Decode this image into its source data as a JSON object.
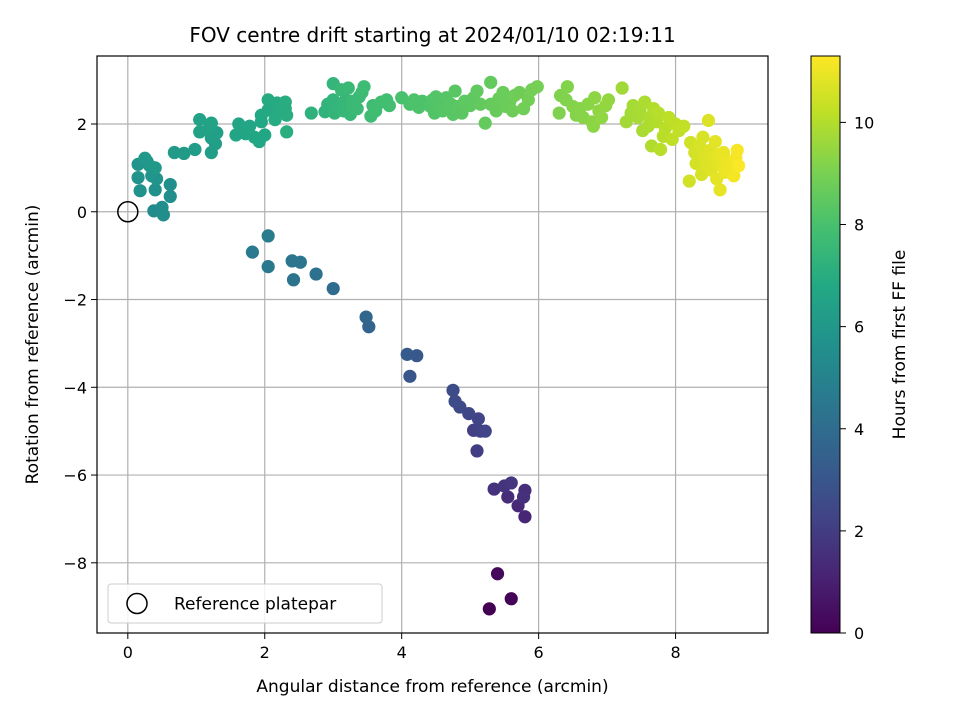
{
  "chart_data": {
    "type": "scatter",
    "title": "FOV centre drift starting at 2024/01/10 02:19:11",
    "xlabel": "Angular distance from reference (arcmin)",
    "ylabel": "Rotation from reference (arcmin)",
    "xlim": [
      -0.45,
      9.35
    ],
    "ylim": [
      -9.6,
      3.55
    ],
    "xticks": [
      0,
      2,
      4,
      6,
      8
    ],
    "yticks": [
      -8,
      -6,
      -4,
      -2,
      0,
      2
    ],
    "xtick_labels": [
      "0",
      "2",
      "4",
      "6",
      "8"
    ],
    "ytick_labels": [
      "−8",
      "−6",
      "−4",
      "−2",
      "0",
      "2"
    ],
    "grid": true,
    "colormap": "viridis",
    "colorbar": {
      "label": "Hours from first FF file",
      "min": 0,
      "max": 11.3,
      "ticks": [
        0,
        2,
        4,
        6,
        8,
        10
      ],
      "tick_labels": [
        "0",
        "2",
        "4",
        "6",
        "8",
        "10"
      ]
    },
    "reference": {
      "x": 0,
      "y": 0
    },
    "legend": {
      "position": "lower-left",
      "label": "Reference platepar"
    },
    "series": [
      {
        "values_format": "[x, y, hours]",
        "points": [
          [
            5.28,
            -9.05,
            0.0
          ],
          [
            5.6,
            -8.82,
            0.1
          ],
          [
            5.4,
            -8.25,
            0.25
          ],
          [
            5.8,
            -6.95,
            1.2
          ],
          [
            5.7,
            -6.7,
            1.3
          ],
          [
            5.55,
            -6.5,
            1.4
          ],
          [
            5.8,
            -6.35,
            1.5
          ],
          [
            5.78,
            -6.5,
            1.55
          ],
          [
            5.35,
            -6.32,
            1.6
          ],
          [
            5.5,
            -6.25,
            1.7
          ],
          [
            5.6,
            -6.18,
            1.8
          ],
          [
            5.1,
            -5.45,
            2.0
          ],
          [
            5.05,
            -4.98,
            2.1
          ],
          [
            5.15,
            -5.0,
            2.2
          ],
          [
            5.22,
            -5.0,
            2.25
          ],
          [
            5.12,
            -4.72,
            2.3
          ],
          [
            4.98,
            -4.6,
            2.4
          ],
          [
            4.85,
            -4.45,
            2.5
          ],
          [
            4.78,
            -4.32,
            2.55
          ],
          [
            4.75,
            -4.07,
            2.6
          ],
          [
            4.12,
            -3.75,
            3.0
          ],
          [
            4.22,
            -3.28,
            3.1
          ],
          [
            4.08,
            -3.25,
            3.2
          ],
          [
            3.52,
            -2.62,
            3.6
          ],
          [
            3.48,
            -2.4,
            3.7
          ],
          [
            3.0,
            -1.75,
            4.0
          ],
          [
            2.75,
            -1.42,
            4.2
          ],
          [
            2.42,
            -1.55,
            4.3
          ],
          [
            2.52,
            -1.15,
            4.4
          ],
          [
            2.4,
            -1.12,
            4.45
          ],
          [
            2.05,
            -1.25,
            4.5
          ],
          [
            1.82,
            -0.92,
            4.6
          ],
          [
            2.05,
            -0.55,
            4.7
          ],
          [
            0.38,
            0.02,
            5.4
          ],
          [
            0.5,
            0.1,
            5.45
          ],
          [
            0.52,
            -0.07,
            5.5
          ],
          [
            0.62,
            0.35,
            5.55
          ],
          [
            0.62,
            0.62,
            5.6
          ],
          [
            0.4,
            0.5,
            5.65
          ],
          [
            0.18,
            0.48,
            5.7
          ],
          [
            0.15,
            0.78,
            5.75
          ],
          [
            0.42,
            0.75,
            5.8
          ],
          [
            0.35,
            0.82,
            5.82
          ],
          [
            0.15,
            1.08,
            5.85
          ],
          [
            0.28,
            1.15,
            5.9
          ],
          [
            0.32,
            1.05,
            5.95
          ],
          [
            0.25,
            1.22,
            6.0
          ],
          [
            0.4,
            1.0,
            6.05
          ],
          [
            0.68,
            1.35,
            6.1
          ],
          [
            0.82,
            1.33,
            6.15
          ],
          [
            0.98,
            1.42,
            6.2
          ],
          [
            1.22,
            1.35,
            6.25
          ],
          [
            1.28,
            1.55,
            6.3
          ],
          [
            1.22,
            1.68,
            6.35
          ],
          [
            1.3,
            1.8,
            6.4
          ],
          [
            1.05,
            1.82,
            6.42
          ],
          [
            1.18,
            1.88,
            6.45
          ],
          [
            1.05,
            2.1,
            6.5
          ],
          [
            1.22,
            2.02,
            6.55
          ],
          [
            1.58,
            1.75,
            6.6
          ],
          [
            1.72,
            1.78,
            6.62
          ],
          [
            1.62,
            2.0,
            6.65
          ],
          [
            1.78,
            1.95,
            6.68
          ],
          [
            1.92,
            1.6,
            6.7
          ],
          [
            1.85,
            1.7,
            6.72
          ],
          [
            2.0,
            1.75,
            6.75
          ],
          [
            1.95,
            2.05,
            6.78
          ],
          [
            1.95,
            2.2,
            6.8
          ],
          [
            2.05,
            2.32,
            6.82
          ],
          [
            2.1,
            2.4,
            6.85
          ],
          [
            2.05,
            2.55,
            6.88
          ],
          [
            2.18,
            2.48,
            6.9
          ],
          [
            2.15,
            2.1,
            6.92
          ],
          [
            2.22,
            2.25,
            6.95
          ],
          [
            2.3,
            2.35,
            6.98
          ],
          [
            2.3,
            2.5,
            7.0
          ],
          [
            2.32,
            2.2,
            7.02
          ],
          [
            2.32,
            1.82,
            7.05
          ],
          [
            2.68,
            2.25,
            7.2
          ],
          [
            2.88,
            2.28,
            7.25
          ],
          [
            2.92,
            2.45,
            7.3
          ],
          [
            3.0,
            2.55,
            7.35
          ],
          [
            3.02,
            2.25,
            7.38
          ],
          [
            3.08,
            2.4,
            7.4
          ],
          [
            3.0,
            2.92,
            7.42
          ],
          [
            3.15,
            2.3,
            7.45
          ],
          [
            3.18,
            2.55,
            7.48
          ],
          [
            3.12,
            2.78,
            7.5
          ],
          [
            3.25,
            2.22,
            7.52
          ],
          [
            3.22,
            2.82,
            7.55
          ],
          [
            3.28,
            2.52,
            7.58
          ],
          [
            3.3,
            2.38,
            7.6
          ],
          [
            3.38,
            2.62,
            7.62
          ],
          [
            3.35,
            2.35,
            7.65
          ],
          [
            3.42,
            2.72,
            7.68
          ],
          [
            3.45,
            2.85,
            7.7
          ],
          [
            3.55,
            2.18,
            7.75
          ],
          [
            3.58,
            2.42,
            7.78
          ],
          [
            3.62,
            2.3,
            7.8
          ],
          [
            3.7,
            2.5,
            7.82
          ],
          [
            3.78,
            2.55,
            7.85
          ],
          [
            3.82,
            2.42,
            7.88
          ],
          [
            4.0,
            2.6,
            8.0
          ],
          [
            4.12,
            2.45,
            8.05
          ],
          [
            4.18,
            2.55,
            8.08
          ],
          [
            4.25,
            2.38,
            8.1
          ],
          [
            4.3,
            2.52,
            8.12
          ],
          [
            4.42,
            2.4,
            8.15
          ],
          [
            4.45,
            2.55,
            8.18
          ],
          [
            4.48,
            2.25,
            8.2
          ],
          [
            4.5,
            2.62,
            8.22
          ],
          [
            4.55,
            2.45,
            8.25
          ],
          [
            4.6,
            2.3,
            8.28
          ],
          [
            4.65,
            2.6,
            8.3
          ],
          [
            4.72,
            2.45,
            8.32
          ],
          [
            4.75,
            2.22,
            8.35
          ],
          [
            4.78,
            2.75,
            8.38
          ],
          [
            4.82,
            2.4,
            8.4
          ],
          [
            4.88,
            2.25,
            8.42
          ],
          [
            4.92,
            2.52,
            8.45
          ],
          [
            5.0,
            2.42,
            8.48
          ],
          [
            5.05,
            2.6,
            8.5
          ],
          [
            5.1,
            2.75,
            8.52
          ],
          [
            5.15,
            2.45,
            8.55
          ],
          [
            5.22,
            2.02,
            8.58
          ],
          [
            5.3,
            2.95,
            8.6
          ],
          [
            5.3,
            2.45,
            8.62
          ],
          [
            5.38,
            2.3,
            8.65
          ],
          [
            5.42,
            2.58,
            8.68
          ],
          [
            5.48,
            2.72,
            8.7
          ],
          [
            5.52,
            2.4,
            8.72
          ],
          [
            5.58,
            2.52,
            8.75
          ],
          [
            5.62,
            2.3,
            8.78
          ],
          [
            5.65,
            2.65,
            8.8
          ],
          [
            5.72,
            2.72,
            8.82
          ],
          [
            5.78,
            2.35,
            8.85
          ],
          [
            5.85,
            2.55,
            8.88
          ],
          [
            5.9,
            2.78,
            8.9
          ],
          [
            5.98,
            2.85,
            8.92
          ],
          [
            6.3,
            2.25,
            9.1
          ],
          [
            6.32,
            2.65,
            9.12
          ],
          [
            6.4,
            2.55,
            9.15
          ],
          [
            6.42,
            2.85,
            9.18
          ],
          [
            6.5,
            2.4,
            9.2
          ],
          [
            6.55,
            2.2,
            9.22
          ],
          [
            6.6,
            2.35,
            9.25
          ],
          [
            6.65,
            2.15,
            9.28
          ],
          [
            6.72,
            2.45,
            9.3
          ],
          [
            6.78,
            2.05,
            9.32
          ],
          [
            6.8,
            1.95,
            9.35
          ],
          [
            6.82,
            2.6,
            9.38
          ],
          [
            6.88,
            2.3,
            9.4
          ],
          [
            6.92,
            2.15,
            9.42
          ],
          [
            6.98,
            2.42,
            9.45
          ],
          [
            7.02,
            2.55,
            9.48
          ],
          [
            7.22,
            2.82,
            9.7
          ],
          [
            7.28,
            2.05,
            9.72
          ],
          [
            7.35,
            2.25,
            9.75
          ],
          [
            7.38,
            2.42,
            9.78
          ],
          [
            7.45,
            2.15,
            9.8
          ],
          [
            7.48,
            2.32,
            9.82
          ],
          [
            7.52,
            1.85,
            9.85
          ],
          [
            7.55,
            2.5,
            9.88
          ],
          [
            7.6,
            1.95,
            9.9
          ],
          [
            7.62,
            2.15,
            9.92
          ],
          [
            7.65,
            1.5,
            9.95
          ],
          [
            7.68,
            2.35,
            9.98
          ],
          [
            7.72,
            2.05,
            10.0
          ],
          [
            7.75,
            2.25,
            10.05
          ],
          [
            7.78,
            1.42,
            10.08
          ],
          [
            7.82,
            1.72,
            10.1
          ],
          [
            7.85,
            1.9,
            10.12
          ],
          [
            7.9,
            2.15,
            10.15
          ],
          [
            7.95,
            1.65,
            10.18
          ],
          [
            8.0,
            2.0,
            10.2
          ],
          [
            8.05,
            1.85,
            10.22
          ],
          [
            8.12,
            1.95,
            10.25
          ],
          [
            8.2,
            0.7,
            10.5
          ],
          [
            8.22,
            1.58,
            10.52
          ],
          [
            8.28,
            1.35,
            10.55
          ],
          [
            8.3,
            1.1,
            10.58
          ],
          [
            8.35,
            1.5,
            10.6
          ],
          [
            8.38,
            0.85,
            10.62
          ],
          [
            8.4,
            1.7,
            10.65
          ],
          [
            8.42,
            1.25,
            10.68
          ],
          [
            8.45,
            1.05,
            10.7
          ],
          [
            8.48,
            2.08,
            10.72
          ],
          [
            8.5,
            1.4,
            10.75
          ],
          [
            8.52,
            0.95,
            10.78
          ],
          [
            8.55,
            1.2,
            10.8
          ],
          [
            8.58,
            1.6,
            10.82
          ],
          [
            8.6,
            0.75,
            10.85
          ],
          [
            8.62,
            1.3,
            10.88
          ],
          [
            8.65,
            0.5,
            10.9
          ],
          [
            8.68,
            1.05,
            10.92
          ],
          [
            8.7,
            1.35,
            10.95
          ],
          [
            8.72,
            0.9,
            10.98
          ],
          [
            8.75,
            1.15,
            11.0
          ],
          [
            8.8,
            1.0,
            11.05
          ],
          [
            8.85,
            0.82,
            11.1
          ],
          [
            8.88,
            1.22,
            11.15
          ],
          [
            8.9,
            1.4,
            11.2
          ],
          [
            8.92,
            1.05,
            11.25
          ]
        ]
      }
    ]
  }
}
